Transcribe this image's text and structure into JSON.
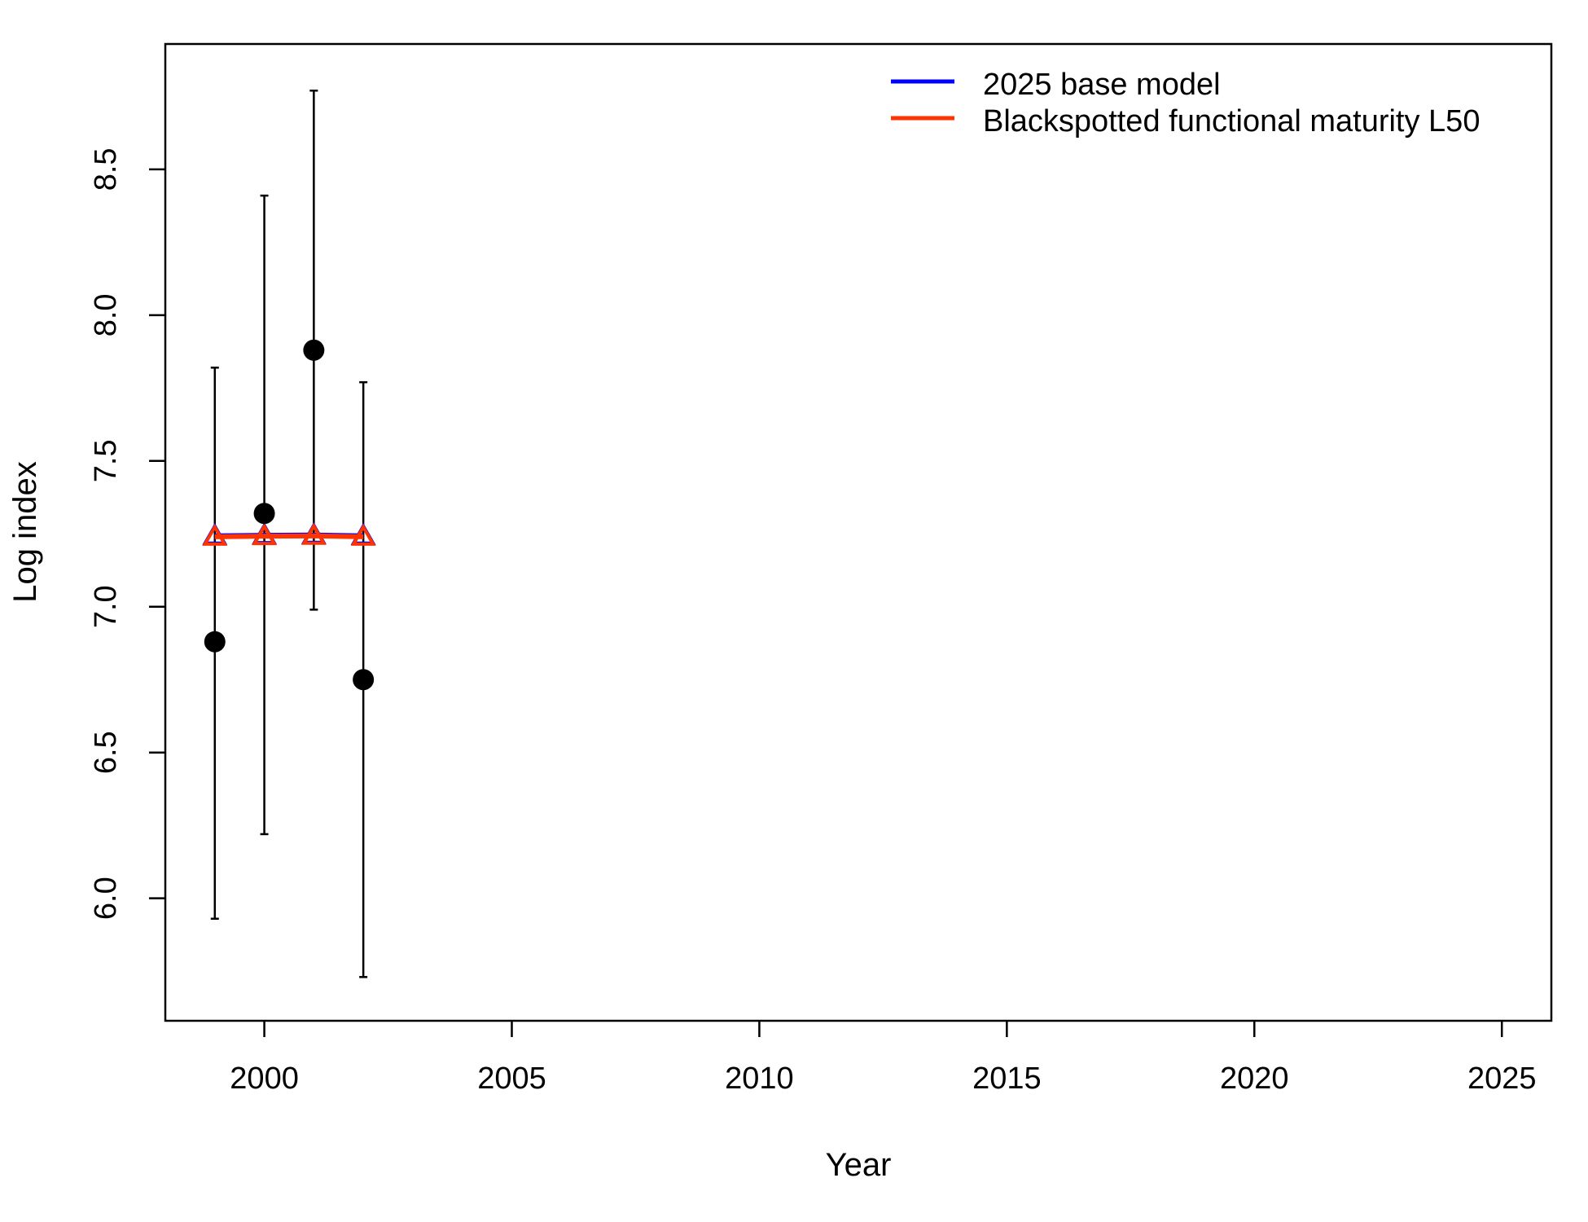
{
  "chart_data": {
    "type": "scatter",
    "title": "",
    "xlabel": "Year",
    "ylabel": "Log index",
    "xlim": [
      1998,
      2026
    ],
    "ylim": [
      5.58,
      8.93
    ],
    "grid": false,
    "legend_position": "top-right",
    "x_ticks": [
      "2000",
      "2005",
      "2010",
      "2015",
      "2020",
      "2025"
    ],
    "y_ticks": [
      "6.0",
      "6.5",
      "7.0",
      "7.5",
      "8.0",
      "8.5"
    ],
    "observed": {
      "x": [
        1999,
        2000,
        2001,
        2002
      ],
      "y": [
        6.88,
        7.32,
        7.88,
        6.75
      ],
      "lower": [
        5.93,
        6.22,
        6.99,
        5.73
      ],
      "upper": [
        7.82,
        8.41,
        8.77,
        7.77
      ]
    },
    "series": [
      {
        "name": "2025 base model",
        "color": "#0000ff",
        "x": [
          1999,
          2000,
          2001,
          2002
        ],
        "y": [
          7.243,
          7.245,
          7.246,
          7.243
        ]
      },
      {
        "name": "Blackspotted functional maturity L50",
        "color": "#ff3300",
        "x": [
          1999,
          2000,
          2001,
          2002
        ],
        "y": [
          7.24,
          7.242,
          7.243,
          7.24
        ]
      }
    ]
  }
}
